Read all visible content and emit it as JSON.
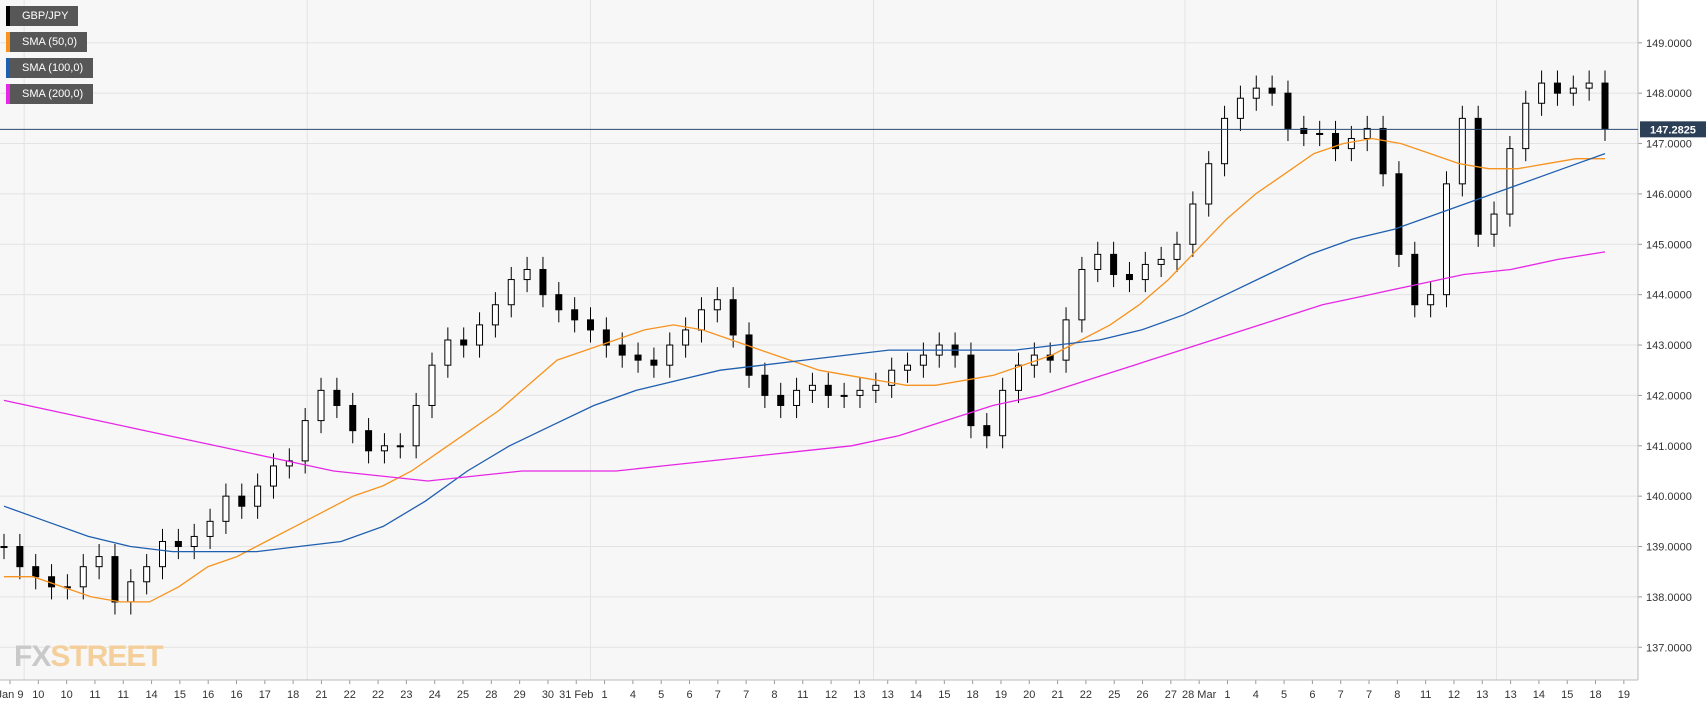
{
  "legend": [
    {
      "label": "GBP/JPY",
      "color": "#000000"
    },
    {
      "label": "SMA (50,0)",
      "color": "#f7931e"
    },
    {
      "label": "SMA (100,0)",
      "color": "#1f5fb0"
    },
    {
      "label": "SMA (200,0)",
      "color": "#e627e6"
    }
  ],
  "logo": {
    "part1": "FX",
    "part2": "STREET"
  },
  "chart_data": {
    "type": "line",
    "title": "",
    "xlabel": "",
    "ylabel": "",
    "ylim": [
      136.35,
      149.85
    ],
    "yticks": [
      "137.0000",
      "138.0000",
      "139.0000",
      "140.0000",
      "141.0000",
      "142.0000",
      "143.0000",
      "144.0000",
      "145.0000",
      "146.0000",
      "147.0000",
      "148.0000",
      "149.0000"
    ],
    "xticks": [
      "Jan 9",
      "10",
      "10",
      "11",
      "11",
      "14",
      "15",
      "16",
      "16",
      "17",
      "18",
      "21",
      "22",
      "22",
      "23",
      "24",
      "25",
      "28",
      "29",
      "30",
      "31 Feb",
      "1",
      "4",
      "5",
      "6",
      "7",
      "7",
      "8",
      "11",
      "12",
      "13",
      "13",
      "14",
      "15",
      "18",
      "19",
      "20",
      "21",
      "22",
      "25",
      "26",
      "27",
      "28 Mar",
      "1",
      "4",
      "5",
      "6",
      "7",
      "7",
      "8",
      "11",
      "12",
      "13",
      "13",
      "14",
      "15",
      "18",
      "19"
    ],
    "current_price": 147.2825,
    "current_price_label": "147.2825",
    "grid": true,
    "series": [
      {
        "name": "GBP/JPY",
        "color": "#000000",
        "values": [
          139.0,
          138.6,
          138.4,
          138.2,
          138.2,
          138.6,
          138.8,
          137.9,
          138.3,
          138.6,
          139.1,
          139.0,
          139.2,
          139.5,
          140.0,
          139.8,
          140.2,
          140.6,
          140.7,
          141.5,
          142.1,
          141.8,
          141.3,
          140.9,
          141.0,
          141.0,
          141.8,
          142.6,
          143.1,
          143.0,
          143.4,
          143.8,
          144.3,
          144.5,
          144.0,
          143.7,
          143.5,
          143.3,
          143.0,
          142.8,
          142.7,
          142.6,
          143.0,
          143.3,
          143.7,
          143.9,
          143.2,
          142.4,
          142.0,
          141.8,
          142.1,
          142.2,
          142.0,
          142.0,
          142.1,
          142.2,
          142.5,
          142.6,
          142.8,
          143.0,
          142.8,
          141.4,
          141.2,
          142.1,
          142.6,
          142.8,
          142.7,
          143.5,
          144.5,
          144.8,
          144.4,
          144.3,
          144.6,
          144.7,
          145.0,
          145.8,
          146.6,
          147.5,
          147.9,
          148.1,
          148.0,
          147.3,
          147.2,
          147.2,
          146.9,
          147.1,
          147.3,
          146.4,
          144.8,
          143.8,
          144.0,
          146.2,
          147.5,
          145.2,
          145.6,
          146.9,
          147.8,
          148.2,
          148.0,
          148.1,
          148.2,
          147.3
        ]
      },
      {
        "name": "SMA (50,0)",
        "color": "#f7931e",
        "values": [
          138.4,
          138.4,
          138.2,
          138.0,
          137.9,
          137.9,
          138.2,
          138.6,
          138.8,
          139.1,
          139.4,
          139.7,
          140.0,
          140.2,
          140.5,
          140.9,
          141.3,
          141.7,
          142.2,
          142.7,
          142.9,
          143.1,
          143.3,
          143.4,
          143.3,
          143.1,
          142.9,
          142.7,
          142.5,
          142.4,
          142.3,
          142.2,
          142.2,
          142.3,
          142.4,
          142.6,
          142.8,
          143.1,
          143.4,
          143.8,
          144.3,
          144.9,
          145.5,
          146.0,
          146.4,
          146.8,
          147.0,
          147.1,
          147.0,
          146.8,
          146.6,
          146.5,
          146.5,
          146.6,
          146.7,
          146.7
        ]
      },
      {
        "name": "SMA (100,0)",
        "color": "#1f5fb0",
        "values": [
          139.8,
          139.5,
          139.2,
          139.0,
          138.9,
          138.9,
          138.9,
          139.0,
          139.1,
          139.4,
          139.9,
          140.5,
          141.0,
          141.4,
          141.8,
          142.1,
          142.3,
          142.5,
          142.6,
          142.7,
          142.8,
          142.9,
          142.9,
          142.9,
          142.9,
          143.0,
          143.1,
          143.3,
          143.6,
          144.0,
          144.4,
          144.8,
          145.1,
          145.3,
          145.6,
          145.9,
          146.2,
          146.5,
          146.8
        ]
      },
      {
        "name": "SMA (200,0)",
        "color": "#e627e6",
        "values": [
          141.9,
          141.7,
          141.5,
          141.3,
          141.1,
          140.9,
          140.7,
          140.5,
          140.4,
          140.3,
          140.4,
          140.5,
          140.5,
          140.5,
          140.6,
          140.7,
          140.8,
          140.9,
          141.0,
          141.2,
          141.5,
          141.8,
          142.0,
          142.3,
          142.6,
          142.9,
          143.2,
          143.5,
          143.8,
          144.0,
          144.2,
          144.4,
          144.5,
          144.7,
          144.85
        ]
      }
    ]
  }
}
